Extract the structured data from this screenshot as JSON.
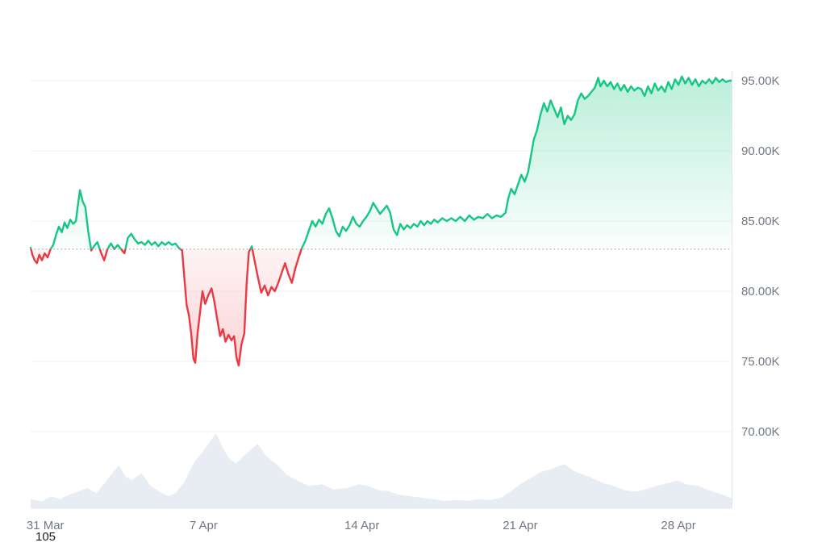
{
  "footer": {
    "label": "105"
  },
  "chart_data": {
    "type": "line",
    "description": "Price chart with baseline comparison (green above baseline, red below) and volume area at bottom",
    "unit": "K",
    "baseline": {
      "value": 83.0
    },
    "ylim": [
      68.5,
      97
    ],
    "x_span_days": 31,
    "grid": "horizontal",
    "legend": "none",
    "colors": {
      "up": "#16c784",
      "down": "#ea3943",
      "grid": "#f0f1f3",
      "axis_line": "#e3e6ea",
      "baseline_dots": "#9ba1a8",
      "volume_fill": "#e8edf3",
      "axis_text": "#707883"
    },
    "y_axis": {
      "side": "right",
      "ticks": [
        {
          "value": 95,
          "label": "95.00K"
        },
        {
          "value": 90,
          "label": "90.00K"
        },
        {
          "value": 85,
          "label": "85.00K"
        },
        {
          "value": 80,
          "label": "80.00K"
        },
        {
          "value": 75,
          "label": "75.00K"
        },
        {
          "value": 70,
          "label": "70.00K"
        }
      ]
    },
    "x_axis": {
      "ticks": [
        {
          "day": 0,
          "label": "31 Mar"
        },
        {
          "day": 7,
          "label": "7 Apr"
        },
        {
          "day": 14,
          "label": "14 Apr"
        },
        {
          "day": 21,
          "label": "21 Apr"
        },
        {
          "day": 28,
          "label": "28 Apr"
        }
      ]
    },
    "series": [
      {
        "name": "price",
        "points": [
          [
            0.0,
            83.1
          ],
          [
            0.08,
            82.6
          ],
          [
            0.18,
            82.2
          ],
          [
            0.28,
            82.0
          ],
          [
            0.38,
            82.6
          ],
          [
            0.5,
            82.2
          ],
          [
            0.62,
            82.7
          ],
          [
            0.75,
            82.4
          ],
          [
            0.88,
            83.0
          ],
          [
            1.0,
            83.3
          ],
          [
            1.12,
            84.0
          ],
          [
            1.25,
            84.6
          ],
          [
            1.38,
            84.2
          ],
          [
            1.5,
            84.9
          ],
          [
            1.62,
            84.5
          ],
          [
            1.75,
            85.1
          ],
          [
            1.88,
            84.8
          ],
          [
            2.0,
            85.0
          ],
          [
            2.08,
            86.0
          ],
          [
            2.18,
            87.2
          ],
          [
            2.3,
            86.4
          ],
          [
            2.42,
            86.0
          ],
          [
            2.55,
            84.2
          ],
          [
            2.68,
            82.9
          ],
          [
            2.8,
            83.2
          ],
          [
            2.95,
            83.5
          ],
          [
            3.1,
            82.8
          ],
          [
            3.25,
            82.2
          ],
          [
            3.4,
            83.0
          ],
          [
            3.55,
            83.4
          ],
          [
            3.7,
            83.0
          ],
          [
            3.85,
            83.3
          ],
          [
            4.0,
            83.0
          ],
          [
            4.15,
            82.7
          ],
          [
            4.3,
            83.8
          ],
          [
            4.45,
            84.1
          ],
          [
            4.6,
            83.7
          ],
          [
            4.75,
            83.4
          ],
          [
            4.9,
            83.5
          ],
          [
            5.05,
            83.3
          ],
          [
            5.2,
            83.6
          ],
          [
            5.35,
            83.3
          ],
          [
            5.5,
            83.5
          ],
          [
            5.65,
            83.2
          ],
          [
            5.8,
            83.5
          ],
          [
            5.95,
            83.3
          ],
          [
            6.1,
            83.5
          ],
          [
            6.25,
            83.3
          ],
          [
            6.4,
            83.4
          ],
          [
            6.55,
            83.1
          ],
          [
            6.7,
            82.9
          ],
          [
            6.8,
            80.9
          ],
          [
            6.9,
            79.0
          ],
          [
            7.0,
            78.3
          ],
          [
            7.1,
            77.0
          ],
          [
            7.2,
            75.2
          ],
          [
            7.28,
            74.9
          ],
          [
            7.38,
            77.0
          ],
          [
            7.5,
            78.6
          ],
          [
            7.6,
            80.0
          ],
          [
            7.72,
            79.1
          ],
          [
            7.85,
            79.7
          ],
          [
            8.0,
            80.2
          ],
          [
            8.12,
            79.3
          ],
          [
            8.25,
            78.0
          ],
          [
            8.38,
            76.8
          ],
          [
            8.5,
            77.3
          ],
          [
            8.62,
            76.4
          ],
          [
            8.75,
            76.9
          ],
          [
            8.88,
            76.5
          ],
          [
            9.0,
            76.8
          ],
          [
            9.1,
            75.3
          ],
          [
            9.2,
            74.7
          ],
          [
            9.32,
            76.2
          ],
          [
            9.45,
            77.0
          ],
          [
            9.55,
            80.5
          ],
          [
            9.65,
            82.8
          ],
          [
            9.78,
            83.2
          ],
          [
            9.9,
            82.2
          ],
          [
            10.05,
            81.0
          ],
          [
            10.2,
            79.9
          ],
          [
            10.35,
            80.4
          ],
          [
            10.5,
            79.7
          ],
          [
            10.65,
            80.3
          ],
          [
            10.8,
            80.0
          ],
          [
            10.95,
            80.6
          ],
          [
            11.1,
            81.3
          ],
          [
            11.25,
            82.0
          ],
          [
            11.4,
            81.2
          ],
          [
            11.55,
            80.6
          ],
          [
            11.7,
            81.6
          ],
          [
            11.85,
            82.4
          ],
          [
            12.0,
            83.1
          ],
          [
            12.15,
            83.6
          ],
          [
            12.3,
            84.3
          ],
          [
            12.45,
            85.0
          ],
          [
            12.6,
            84.6
          ],
          [
            12.75,
            85.1
          ],
          [
            12.9,
            84.8
          ],
          [
            13.05,
            85.5
          ],
          [
            13.2,
            85.9
          ],
          [
            13.35,
            85.2
          ],
          [
            13.5,
            84.3
          ],
          [
            13.65,
            83.9
          ],
          [
            13.8,
            84.6
          ],
          [
            13.95,
            84.3
          ],
          [
            14.1,
            84.7
          ],
          [
            14.25,
            85.3
          ],
          [
            14.4,
            84.8
          ],
          [
            14.55,
            84.6
          ],
          [
            14.7,
            85.0
          ],
          [
            14.85,
            85.3
          ],
          [
            15.0,
            85.7
          ],
          [
            15.15,
            86.3
          ],
          [
            15.3,
            85.9
          ],
          [
            15.45,
            85.5
          ],
          [
            15.6,
            85.8
          ],
          [
            15.75,
            86.1
          ],
          [
            15.9,
            85.6
          ],
          [
            16.05,
            84.4
          ],
          [
            16.2,
            84.0
          ],
          [
            16.35,
            84.8
          ],
          [
            16.5,
            84.4
          ],
          [
            16.65,
            84.7
          ],
          [
            16.8,
            84.5
          ],
          [
            16.95,
            84.8
          ],
          [
            17.1,
            84.6
          ],
          [
            17.25,
            85.0
          ],
          [
            17.4,
            84.7
          ],
          [
            17.55,
            85.0
          ],
          [
            17.7,
            84.8
          ],
          [
            17.85,
            85.1
          ],
          [
            18.0,
            84.9
          ],
          [
            18.2,
            85.2
          ],
          [
            18.4,
            85.0
          ],
          [
            18.6,
            85.2
          ],
          [
            18.8,
            85.0
          ],
          [
            19.0,
            85.3
          ],
          [
            19.2,
            85.0
          ],
          [
            19.4,
            85.4
          ],
          [
            19.6,
            85.1
          ],
          [
            19.8,
            85.3
          ],
          [
            20.0,
            85.2
          ],
          [
            20.2,
            85.5
          ],
          [
            20.4,
            85.2
          ],
          [
            20.6,
            85.4
          ],
          [
            20.8,
            85.3
          ],
          [
            21.0,
            85.6
          ],
          [
            21.12,
            86.6
          ],
          [
            21.25,
            87.3
          ],
          [
            21.4,
            86.9
          ],
          [
            21.55,
            87.6
          ],
          [
            21.7,
            88.3
          ],
          [
            21.85,
            87.8
          ],
          [
            22.0,
            88.5
          ],
          [
            22.12,
            89.6
          ],
          [
            22.25,
            90.8
          ],
          [
            22.4,
            91.5
          ],
          [
            22.55,
            92.6
          ],
          [
            22.7,
            93.4
          ],
          [
            22.85,
            92.8
          ],
          [
            23.0,
            93.6
          ],
          [
            23.15,
            93.0
          ],
          [
            23.3,
            92.4
          ],
          [
            23.45,
            93.1
          ],
          [
            23.6,
            91.9
          ],
          [
            23.75,
            92.5
          ],
          [
            23.9,
            92.2
          ],
          [
            24.05,
            92.6
          ],
          [
            24.2,
            93.6
          ],
          [
            24.35,
            94.1
          ],
          [
            24.5,
            93.7
          ],
          [
            24.65,
            93.9
          ],
          [
            24.8,
            94.2
          ],
          [
            24.95,
            94.5
          ],
          [
            25.1,
            95.2
          ],
          [
            25.2,
            94.6
          ],
          [
            25.35,
            95.0
          ],
          [
            25.5,
            94.6
          ],
          [
            25.65,
            94.9
          ],
          [
            25.8,
            94.4
          ],
          [
            25.95,
            94.8
          ],
          [
            26.1,
            94.3
          ],
          [
            26.25,
            94.7
          ],
          [
            26.4,
            94.2
          ],
          [
            26.55,
            94.6
          ],
          [
            26.7,
            94.3
          ],
          [
            26.85,
            94.5
          ],
          [
            27.0,
            94.4
          ],
          [
            27.15,
            93.9
          ],
          [
            27.3,
            94.6
          ],
          [
            27.45,
            94.1
          ],
          [
            27.6,
            94.8
          ],
          [
            27.75,
            94.3
          ],
          [
            27.9,
            94.6
          ],
          [
            28.05,
            94.2
          ],
          [
            28.2,
            94.9
          ],
          [
            28.35,
            94.4
          ],
          [
            28.5,
            95.1
          ],
          [
            28.65,
            94.7
          ],
          [
            28.8,
            95.3
          ],
          [
            28.95,
            94.8
          ],
          [
            29.1,
            95.2
          ],
          [
            29.25,
            94.7
          ],
          [
            29.4,
            95.1
          ],
          [
            29.55,
            94.6
          ],
          [
            29.7,
            95.0
          ],
          [
            29.85,
            94.8
          ],
          [
            30.0,
            95.1
          ],
          [
            30.15,
            94.8
          ],
          [
            30.3,
            95.2
          ],
          [
            30.45,
            94.9
          ],
          [
            30.6,
            95.1
          ],
          [
            30.75,
            94.9
          ],
          [
            30.9,
            95.0
          ],
          [
            31.0,
            95.0
          ]
        ]
      }
    ],
    "volume": {
      "points": [
        [
          0,
          0.12
        ],
        [
          0.5,
          0.09
        ],
        [
          0.9,
          0.16
        ],
        [
          1.3,
          0.12
        ],
        [
          1.7,
          0.18
        ],
        [
          2.1,
          0.22
        ],
        [
          2.5,
          0.27
        ],
        [
          2.9,
          0.2
        ],
        [
          3.3,
          0.35
        ],
        [
          3.7,
          0.5
        ],
        [
          3.9,
          0.57
        ],
        [
          4.2,
          0.42
        ],
        [
          4.5,
          0.38
        ],
        [
          4.9,
          0.47
        ],
        [
          5.3,
          0.3
        ],
        [
          5.7,
          0.22
        ],
        [
          6.1,
          0.16
        ],
        [
          6.4,
          0.2
        ],
        [
          6.8,
          0.35
        ],
        [
          7.2,
          0.6
        ],
        [
          7.6,
          0.75
        ],
        [
          8.0,
          0.92
        ],
        [
          8.2,
          1.0
        ],
        [
          8.5,
          0.8
        ],
        [
          8.8,
          0.65
        ],
        [
          9.1,
          0.6
        ],
        [
          9.5,
          0.72
        ],
        [
          9.8,
          0.8
        ],
        [
          10.05,
          0.86
        ],
        [
          10.4,
          0.7
        ],
        [
          10.9,
          0.58
        ],
        [
          11.3,
          0.45
        ],
        [
          11.8,
          0.37
        ],
        [
          12.3,
          0.3
        ],
        [
          12.9,
          0.32
        ],
        [
          13.4,
          0.25
        ],
        [
          14.0,
          0.27
        ],
        [
          14.5,
          0.32
        ],
        [
          14.9,
          0.3
        ],
        [
          15.4,
          0.24
        ],
        [
          15.8,
          0.23
        ],
        [
          16.3,
          0.18
        ],
        [
          16.8,
          0.16
        ],
        [
          17.3,
          0.14
        ],
        [
          17.8,
          0.12
        ],
        [
          18.3,
          0.1
        ],
        [
          18.8,
          0.11
        ],
        [
          19.3,
          0.1
        ],
        [
          19.8,
          0.12
        ],
        [
          20.3,
          0.11
        ],
        [
          20.8,
          0.14
        ],
        [
          21.2,
          0.22
        ],
        [
          21.65,
          0.32
        ],
        [
          22.1,
          0.4
        ],
        [
          22.55,
          0.48
        ],
        [
          23.0,
          0.52
        ],
        [
          23.6,
          0.59
        ],
        [
          24.0,
          0.5
        ],
        [
          24.4,
          0.45
        ],
        [
          24.7,
          0.42
        ],
        [
          25.2,
          0.35
        ],
        [
          25.75,
          0.3
        ],
        [
          26.3,
          0.24
        ],
        [
          26.8,
          0.22
        ],
        [
          27.3,
          0.26
        ],
        [
          27.7,
          0.3
        ],
        [
          28.1,
          0.33
        ],
        [
          28.6,
          0.37
        ],
        [
          29.0,
          0.32
        ],
        [
          29.5,
          0.3
        ],
        [
          30.0,
          0.24
        ],
        [
          30.4,
          0.2
        ],
        [
          30.8,
          0.16
        ],
        [
          31,
          0.13
        ]
      ]
    }
  }
}
